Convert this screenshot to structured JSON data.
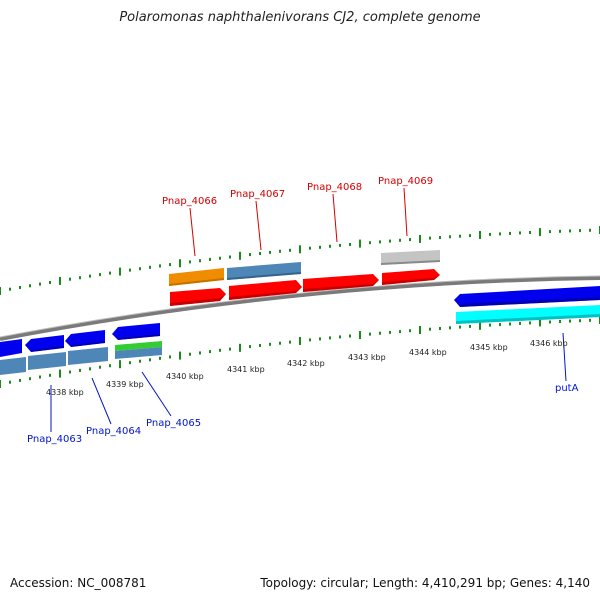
{
  "title": "Polaromonas naphthalenivorans CJ2, complete genome",
  "footer": {
    "accession": "Accession: NC_008781",
    "topology": "Topology: circular; Length: 4,410,291 bp; Genes: 4,140"
  },
  "colors": {
    "red": "#ff0000",
    "blue": "#0000ee",
    "steel": "#4f86b8",
    "orange": "#f08c00",
    "gray": "#c0c0c0",
    "cyan": "#00ffff",
    "green": "#33cc33",
    "tick": "#1a8a1a",
    "label_red": "#d40000",
    "label_blue": "#0016c8"
  },
  "kbp_labels": [
    "4338 kbp",
    "4339 kbp",
    "4340 kbp",
    "4341 kbp",
    "4342 kbp",
    "4343 kbp",
    "4344 kbp",
    "4345 kbp",
    "4346 kbp"
  ],
  "gene_labels_top": [
    "Pnap_4066",
    "Pnap_4067",
    "Pnap_4068",
    "Pnap_4069"
  ],
  "gene_labels_bottom": [
    "Pnap_4063",
    "Pnap_4064",
    "Pnap_4065",
    "putA"
  ]
}
